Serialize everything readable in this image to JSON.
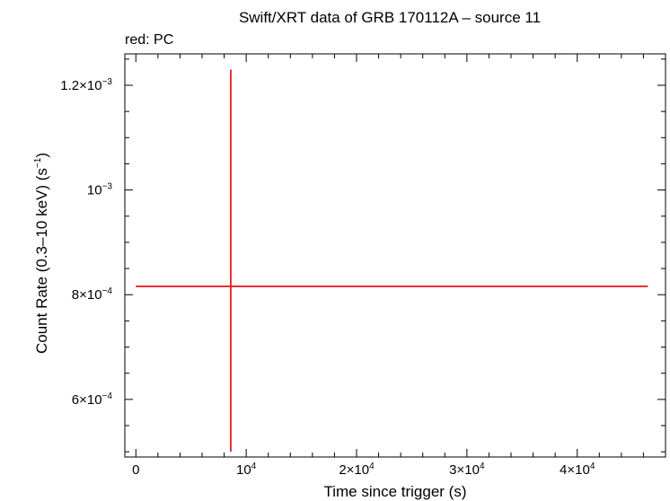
{
  "chart_data": {
    "type": "scatter",
    "title": "Swift/XRT data of GRB 170112A – source 11",
    "subtitle": "red: PC",
    "xlabel": "Time since trigger (s)",
    "ylabel_main": "Count Rate (0.3–10 keV) (s",
    "ylabel_exp": "−1",
    "ylabel_close": ")",
    "xlim": [
      -1000,
      48000
    ],
    "ylim": [
      0.00049,
      0.00126
    ],
    "grid": false,
    "x_ticks": [
      {
        "value": 0,
        "mant": "0",
        "exp": ""
      },
      {
        "value": 10000,
        "mant": "10",
        "exp": "4"
      },
      {
        "value": 20000,
        "mant": "2×10",
        "exp": "4"
      },
      {
        "value": 30000,
        "mant": "3×10",
        "exp": "4"
      },
      {
        "value": 40000,
        "mant": "4×10",
        "exp": "4"
      }
    ],
    "y_ticks": [
      {
        "value": 0.0006,
        "mant": "6×10",
        "exp": "−4"
      },
      {
        "value": 0.0008,
        "mant": "8×10",
        "exp": "−4"
      },
      {
        "value": 0.001,
        "mant": "10",
        "exp": "−3"
      },
      {
        "value": 0.0012,
        "mant": "1.2×10",
        "exp": "−3"
      }
    ],
    "series": [
      {
        "color": "#e00000",
        "points": [
          {
            "x": 8600,
            "xerr_low": 8600,
            "xerr_high": 37800,
            "y": 0.000816,
            "yerr_low": 0.000316,
            "yerr_high": 0.000414
          }
        ]
      }
    ]
  }
}
